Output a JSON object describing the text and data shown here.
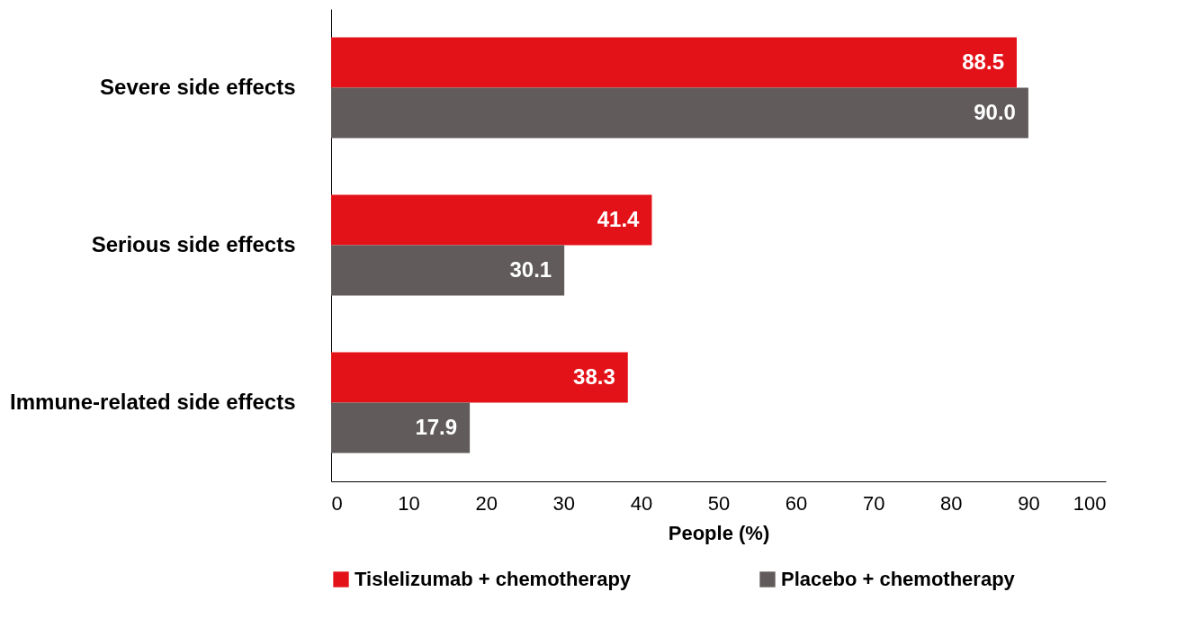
{
  "chart_data": {
    "type": "bar",
    "orientation": "horizontal",
    "xlabel": "People (%)",
    "categories": [
      "Severe side effects",
      "Serious side effects",
      "Immune-related side effects"
    ],
    "series": [
      {
        "name": "Tislelizumab + chemotherapy",
        "color": "#e31219",
        "values": [
          88.5,
          41.4,
          38.3
        ]
      },
      {
        "name": "Placebo + chemotherapy",
        "color": "#615b5b",
        "values": [
          90.0,
          30.1,
          17.9
        ]
      }
    ],
    "xlim": [
      0,
      100
    ],
    "xticks": [
      0,
      10,
      20,
      30,
      40,
      50,
      60,
      70,
      80,
      90,
      100
    ],
    "value_labels": [
      [
        "88.5",
        "41.4",
        "38.3"
      ],
      [
        "90.0",
        "30.1",
        "17.9"
      ]
    ],
    "grid": false,
    "legend": "bottom"
  }
}
